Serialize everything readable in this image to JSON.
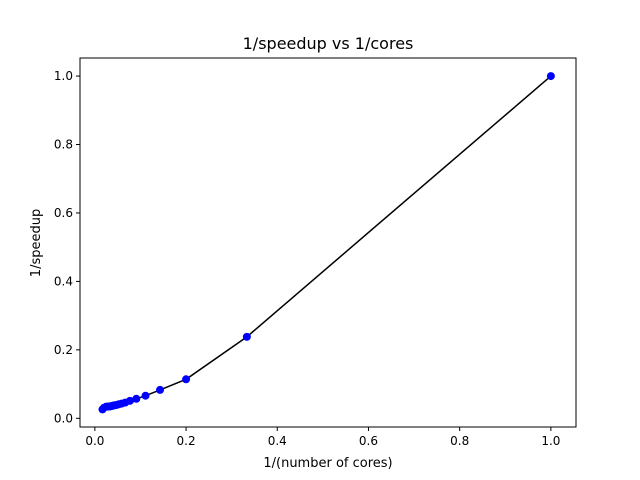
{
  "chart_data": {
    "type": "line",
    "title": "1/speedup vs 1/cores",
    "xlabel": "1/(number of cores)",
    "ylabel": "1/speedup",
    "xlim": [
      -0.0326,
      1.0551
    ],
    "ylim": [
      -0.0254,
      1.0528
    ],
    "xticks": [
      0.0,
      0.2,
      0.4,
      0.6,
      0.8,
      1.0
    ],
    "xtick_labels": [
      "0.0",
      "0.2",
      "0.4",
      "0.6",
      "0.8",
      "1.0"
    ],
    "yticks": [
      0.0,
      0.2,
      0.4,
      0.6,
      0.8,
      1.0
    ],
    "ytick_labels": [
      "0.0",
      "0.2",
      "0.4",
      "0.6",
      "0.8",
      "1.0"
    ],
    "grid": false,
    "line_color": "#000000",
    "marker_color": "#0000ff",
    "series": [
      {
        "x": [
          1.0,
          0.3333,
          0.2,
          0.1429,
          0.1111,
          0.0909,
          0.0769,
          0.0667,
          0.0588,
          0.0526,
          0.0476,
          0.0435,
          0.04,
          0.037,
          0.0345,
          0.0323,
          0.0286,
          0.025,
          0.02,
          0.0167
        ],
        "y": [
          1.0,
          0.238,
          0.114,
          0.083,
          0.066,
          0.057,
          0.051,
          0.046,
          0.043,
          0.041,
          0.039,
          0.038,
          0.037,
          0.036,
          0.035,
          0.035,
          0.034,
          0.034,
          0.031,
          0.026
        ]
      }
    ]
  }
}
